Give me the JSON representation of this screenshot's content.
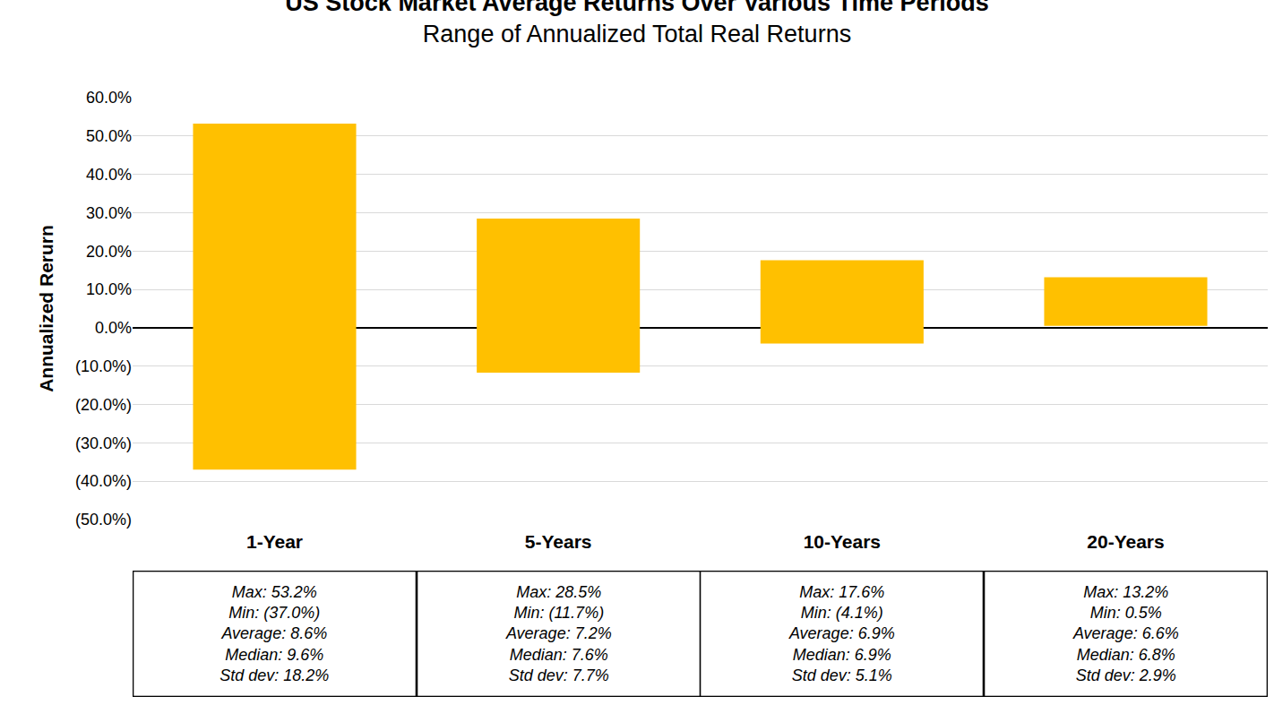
{
  "chart_data": {
    "type": "bar",
    "title": "US Stock Market Average Returns Over Various Time Periods",
    "subtitle": "Range of Annualized Total Real Returns",
    "y_label": "Annualized Rerurn",
    "categories": [
      "1-Year",
      "5-Years",
      "10-Years",
      "20-Years"
    ],
    "max": [
      53.2,
      28.5,
      17.6,
      13.2
    ],
    "min": [
      -37.0,
      -11.7,
      -4.1,
      0.5
    ],
    "color": "#ffc000",
    "ylim": [
      -50,
      60
    ],
    "yticks": [
      {
        "value": -50,
        "label": "(50.0%)"
      },
      {
        "value": -40,
        "label": "(40.0%)"
      },
      {
        "value": -30,
        "label": "(30.0%)"
      },
      {
        "value": -20,
        "label": "(20.0%)"
      },
      {
        "value": -10,
        "label": "(10.0%)"
      },
      {
        "value": 0,
        "label": "0.0%"
      },
      {
        "value": 10,
        "label": "10.0%"
      },
      {
        "value": 20,
        "label": "20.0%"
      },
      {
        "value": 30,
        "label": "30.0%"
      },
      {
        "value": 40,
        "label": "40.0%"
      },
      {
        "value": 50,
        "label": "50.0%"
      },
      {
        "value": 60,
        "label": "60.0%"
      }
    ],
    "grid": true,
    "stat_boxes": [
      [
        "Max: 53.2%",
        "Min: (37.0%)",
        "Average: 8.6%",
        "Median: 9.6%",
        "Std dev: 18.2%"
      ],
      [
        "Max: 28.5%",
        "Min: (11.7%)",
        "Average: 7.2%",
        "Median: 7.6%",
        "Std dev: 7.7%"
      ],
      [
        "Max: 17.6%",
        "Min: (4.1%)",
        "Average: 6.9%",
        "Median: 6.9%",
        "Std dev: 5.1%"
      ],
      [
        "Max: 13.2%",
        "Min: 0.5%",
        "Average: 6.6%",
        "Median: 6.8%",
        "Std dev: 2.9%"
      ]
    ]
  }
}
